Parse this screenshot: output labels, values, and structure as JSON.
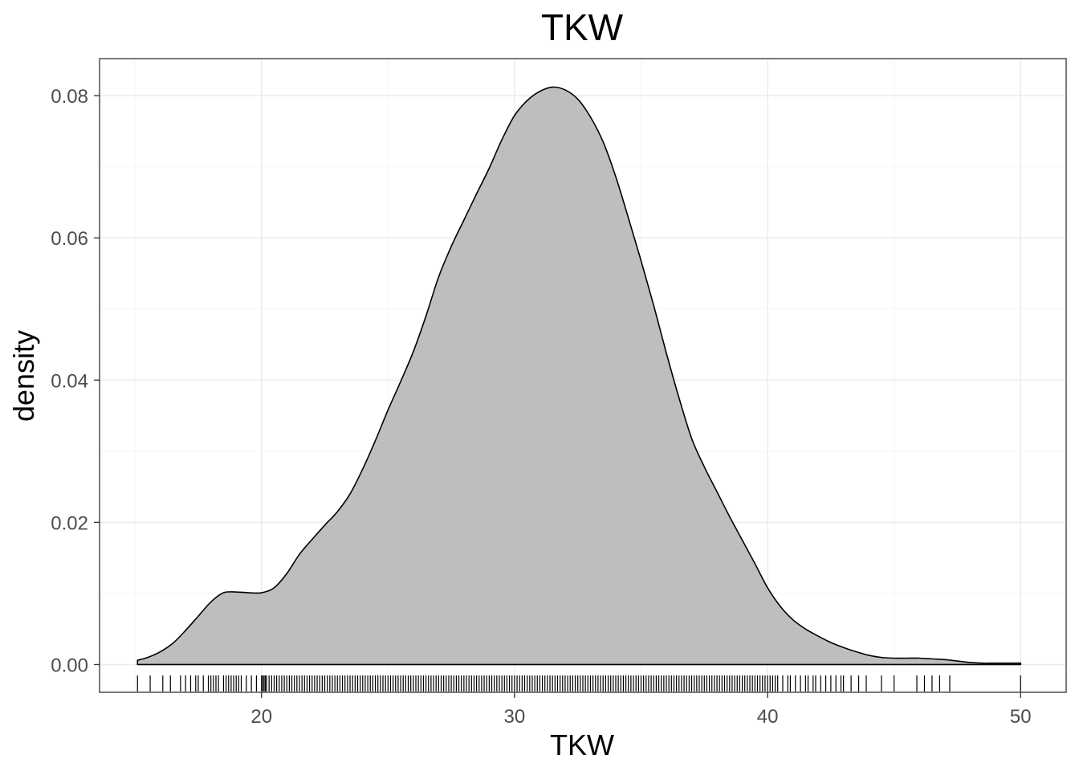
{
  "chart_data": {
    "type": "area",
    "title": "TKW",
    "xlabel": "TKW",
    "ylabel": "density",
    "xlim": [
      13.6,
      51.8
    ],
    "ylim": [
      -0.0039,
      0.0852
    ],
    "x_ticks": [
      20,
      30,
      40,
      50
    ],
    "x_tick_labels": [
      "20",
      "30",
      "40",
      "50"
    ],
    "y_ticks": [
      0.0,
      0.02,
      0.04,
      0.06,
      0.08
    ],
    "y_tick_labels": [
      "0.00",
      "0.02",
      "0.04",
      "0.06",
      "0.08"
    ],
    "grid": true,
    "series": [
      {
        "name": "density",
        "x": [
          15.1,
          15.5,
          16.0,
          16.5,
          17.0,
          17.5,
          18.0,
          18.5,
          19.0,
          19.5,
          20.0,
          20.5,
          21.0,
          21.5,
          22.0,
          22.5,
          23.0,
          23.5,
          24.0,
          24.5,
          25.0,
          25.5,
          26.0,
          26.5,
          27.0,
          27.5,
          28.0,
          28.5,
          29.0,
          29.5,
          30.0,
          30.5,
          31.0,
          31.5,
          32.0,
          32.5,
          33.0,
          33.5,
          34.0,
          34.5,
          35.0,
          35.5,
          36.0,
          36.5,
          37.0,
          37.5,
          38.0,
          38.5,
          39.0,
          39.5,
          40.0,
          40.5,
          41.0,
          41.5,
          42.0,
          42.5,
          43.0,
          43.5,
          44.0,
          44.5,
          45.0,
          45.5,
          46.0,
          46.5,
          47.0,
          47.5,
          48.0,
          48.5,
          49.0,
          50.0
        ],
        "y": [
          0.0006,
          0.001,
          0.0018,
          0.003,
          0.0048,
          0.0068,
          0.0088,
          0.0101,
          0.0102,
          0.0101,
          0.0101,
          0.0108,
          0.0128,
          0.0155,
          0.0176,
          0.0196,
          0.0215,
          0.024,
          0.0275,
          0.0315,
          0.0358,
          0.0398,
          0.044,
          0.049,
          0.0545,
          0.0588,
          0.0625,
          0.0662,
          0.0698,
          0.0738,
          0.0772,
          0.0793,
          0.0806,
          0.0812,
          0.0808,
          0.0795,
          0.077,
          0.0735,
          0.0686,
          0.0628,
          0.0568,
          0.0505,
          0.0438,
          0.0375,
          0.0318,
          0.0278,
          0.0243,
          0.0208,
          0.0175,
          0.0142,
          0.0108,
          0.0082,
          0.0063,
          0.005,
          0.004,
          0.0031,
          0.0024,
          0.0018,
          0.0013,
          0.001,
          0.0009,
          0.0009,
          0.0009,
          0.0008,
          0.0007,
          0.0005,
          0.0003,
          0.0002,
          0.0002,
          0.0002
        ]
      }
    ],
    "rug": [
      15.1,
      15.6,
      16.1,
      16.4,
      16.8,
      17.0,
      17.2,
      17.4,
      17.5,
      17.7,
      17.9,
      18.0,
      18.1,
      18.2,
      18.3,
      18.5,
      18.6,
      18.7,
      18.8,
      18.9,
      19.0,
      19.1,
      19.2,
      19.4,
      19.6,
      19.8,
      20.0,
      20.05,
      20.1,
      20.15,
      20.2,
      20.3,
      20.4,
      20.5,
      20.6,
      20.7,
      20.8,
      20.9,
      21.0,
      21.1,
      21.2,
      21.3,
      21.4,
      21.5,
      21.6,
      21.7,
      21.8,
      21.9,
      22.0,
      22.1,
      22.2,
      22.3,
      22.4,
      22.5,
      22.6,
      22.7,
      22.8,
      22.9,
      23.0,
      23.1,
      23.2,
      23.3,
      23.4,
      23.5,
      23.6,
      23.7,
      23.8,
      23.9,
      24.0,
      24.1,
      24.2,
      24.3,
      24.4,
      24.5,
      24.6,
      24.7,
      24.8,
      24.9,
      25.0,
      25.1,
      25.2,
      25.3,
      25.4,
      25.5,
      25.6,
      25.7,
      25.8,
      25.9,
      26.0,
      26.1,
      26.2,
      26.3,
      26.4,
      26.5,
      26.6,
      26.7,
      26.8,
      26.9,
      27.0,
      27.1,
      27.2,
      27.3,
      27.4,
      27.5,
      27.6,
      27.7,
      27.8,
      27.9,
      28.0,
      28.1,
      28.2,
      28.3,
      28.4,
      28.5,
      28.6,
      28.7,
      28.8,
      28.9,
      29.0,
      29.1,
      29.2,
      29.3,
      29.4,
      29.5,
      29.6,
      29.7,
      29.8,
      29.9,
      30.0,
      30.1,
      30.2,
      30.3,
      30.4,
      30.5,
      30.6,
      30.7,
      30.8,
      30.9,
      31.0,
      31.1,
      31.2,
      31.3,
      31.4,
      31.5,
      31.6,
      31.7,
      31.8,
      31.9,
      32.0,
      32.1,
      32.2,
      32.3,
      32.4,
      32.5,
      32.6,
      32.7,
      32.8,
      32.9,
      33.0,
      33.1,
      33.2,
      33.3,
      33.4,
      33.5,
      33.6,
      33.7,
      33.8,
      33.9,
      34.0,
      34.1,
      34.2,
      34.3,
      34.4,
      34.5,
      34.6,
      34.7,
      34.8,
      34.9,
      35.0,
      35.1,
      35.2,
      35.3,
      35.4,
      35.5,
      35.6,
      35.7,
      35.8,
      35.9,
      36.0,
      36.1,
      36.2,
      36.3,
      36.4,
      36.5,
      36.6,
      36.7,
      36.8,
      36.9,
      37.0,
      37.1,
      37.2,
      37.3,
      37.4,
      37.5,
      37.6,
      37.7,
      37.8,
      37.9,
      38.0,
      38.1,
      38.2,
      38.3,
      38.4,
      38.5,
      38.6,
      38.7,
      38.8,
      38.9,
      39.0,
      39.1,
      39.2,
      39.3,
      39.4,
      39.5,
      39.6,
      39.7,
      39.8,
      39.9,
      40.0,
      40.1,
      40.2,
      40.3,
      40.4,
      40.6,
      40.8,
      40.9,
      41.1,
      41.3,
      41.5,
      41.6,
      41.8,
      41.9,
      42.1,
      42.3,
      42.5,
      42.7,
      42.9,
      43.0,
      43.3,
      43.6,
      43.9,
      44.5,
      45.0,
      45.9,
      46.2,
      46.5,
      46.8,
      47.2,
      50.0
    ]
  }
}
